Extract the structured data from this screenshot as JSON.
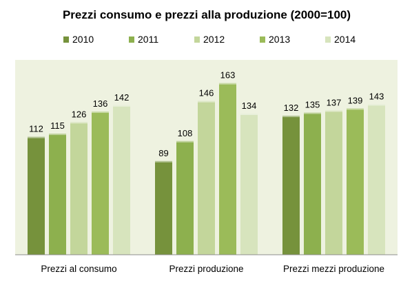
{
  "chart_data": {
    "type": "bar",
    "title": "Prezzi consumo e prezzi alla produzione (2000=100)",
    "categories": [
      "Prezzi al consumo",
      "Prezzi produzione",
      "Prezzi mezzi produzione"
    ],
    "series": [
      {
        "name": "2010",
        "color": "#76923c",
        "values": [
          112,
          89,
          132
        ]
      },
      {
        "name": "2011",
        "color": "#8db04e",
        "values": [
          115,
          108,
          135
        ]
      },
      {
        "name": "2012",
        "color": "#c3d69b",
        "values": [
          126,
          146,
          137
        ]
      },
      {
        "name": "2013",
        "color": "#9bbb59",
        "values": [
          136,
          163,
          139
        ]
      },
      {
        "name": "2014",
        "color": "#d7e4bd",
        "values": [
          142,
          134,
          143
        ]
      }
    ],
    "ylim": [
      0,
      170
    ],
    "legend_position": "top",
    "grid": false,
    "plot_background": "#eef2e0",
    "xlabel": "",
    "ylabel": ""
  }
}
